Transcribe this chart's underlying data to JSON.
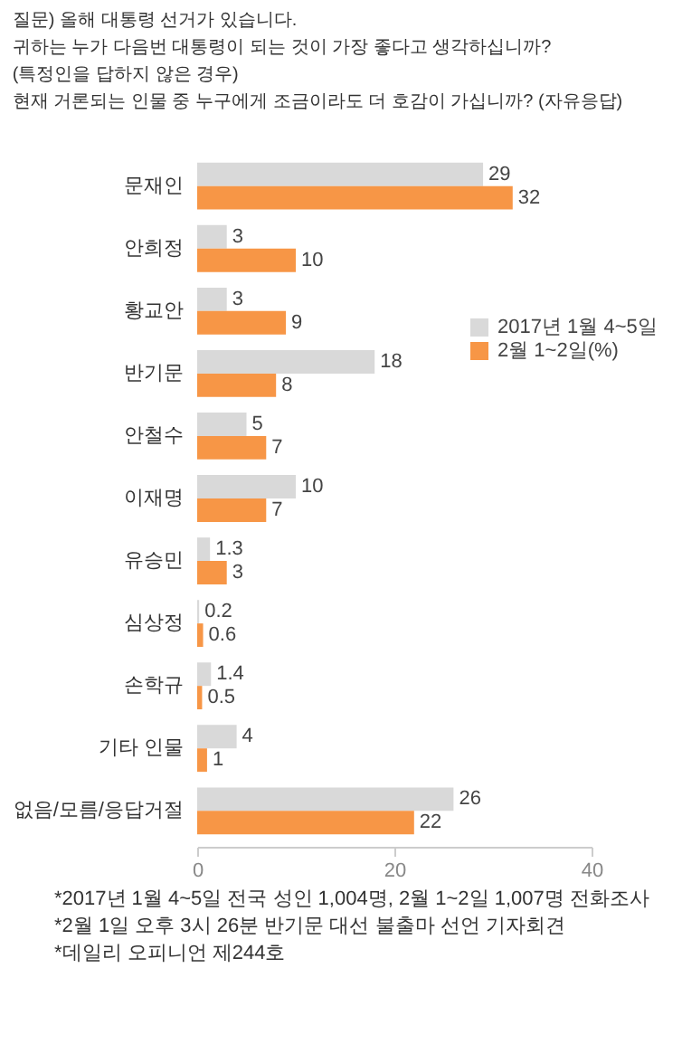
{
  "chart_data": {
    "type": "bar",
    "orientation": "horizontal",
    "title": "질문) 올해 대통령 선거가 있습니다.\n귀하는 누가 다음번 대통령이 되는 것이 가장 좋다고 생각하십니까?\n(특정인을 답하지 않은 경우)\n현재 거론되는 인물 중 누구에게 조금이라도 더 호감이 가십니까? (자유응답)",
    "categories": [
      "문재인",
      "안희정",
      "황교안",
      "반기문",
      "안철수",
      "이재명",
      "유승민",
      "심상정",
      "손학규",
      "기타 인물",
      "없음/모름/응답거절"
    ],
    "series": [
      {
        "name": "2017년 1월 4~5일",
        "color": "#d9d9d9",
        "values": [
          29,
          3,
          3,
          18,
          5,
          10,
          1.3,
          0.2,
          1.4,
          4,
          26
        ]
      },
      {
        "name": "2월 1~2일(%)",
        "color": "#f79646",
        "values": [
          32,
          10,
          9,
          8,
          7,
          7,
          3,
          0.6,
          0.5,
          1,
          22
        ]
      }
    ],
    "xlim": [
      0,
      40
    ],
    "xticks": [
      0,
      20,
      40
    ],
    "grid": false,
    "legend": "top right",
    "data_labels": true,
    "annotations": [
      "*2017년 1월 4~5일 전국 성인 1,004명, 2월 1~2일 1,007명 전화조사",
      "*2월 1일 오후 3시 26분 반기문 대선 불출마 선언 기자회견",
      "*데일리 오피니언 제244호"
    ]
  }
}
